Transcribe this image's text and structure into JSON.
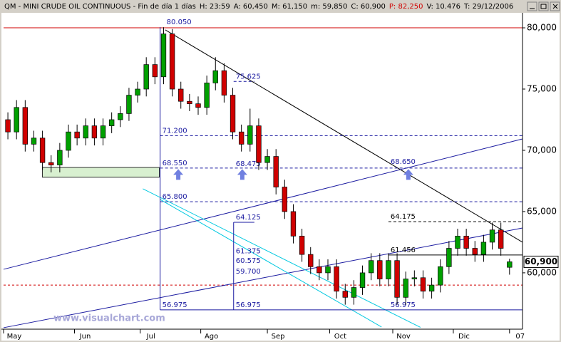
{
  "chart_data": {
    "type": "candlestick",
    "header": [
      "QM - MINI CRUDE OIL CONTINUOUS - Fin de día 1 días",
      "H: 23:59",
      "A: 60,450",
      "M: 61,150",
      "m: 59,850",
      "C: 60,900",
      "P: 82,250",
      "V: 10.476",
      "T: 29/12/2006"
    ],
    "header_colors": [
      "#000000",
      "#000000",
      "#000000",
      "#000000",
      "#000000",
      "#000000",
      "#d00000",
      "#000000",
      "#000000"
    ],
    "watermark": "www.visualchart.com",
    "up_color": "#00a000",
    "down_color": "#d00000",
    "open": [
      72500,
      71500,
      73500,
      70500,
      71000,
      69000,
      68800,
      70000,
      71500,
      71000,
      72000,
      71000,
      72000,
      72500,
      73000,
      74500,
      75000,
      77000,
      76000,
      79500,
      75000,
      74000,
      73800,
      73500,
      75500,
      76500,
      74500,
      71500,
      70500,
      72000,
      69000,
      69500,
      67000,
      65000,
      63000,
      61500,
      60500,
      60000,
      60500,
      58500,
      58000,
      58800,
      60000,
      61000,
      59500,
      61000,
      58000,
      59500,
      59600,
      58500,
      59000,
      60500,
      62000,
      63000,
      62000,
      61500,
      62500,
      63500,
      60450
    ],
    "high": [
      73100,
      74100,
      74100,
      71600,
      71600,
      69600,
      70600,
      72100,
      72100,
      72600,
      72600,
      72600,
      73100,
      73600,
      75100,
      75600,
      77600,
      77600,
      80050,
      79900,
      75600,
      74600,
      74400,
      76100,
      77600,
      77100,
      75100,
      72100,
      73400,
      72600,
      70100,
      70100,
      67600,
      65600,
      63600,
      62100,
      61100,
      61100,
      61100,
      59100,
      59400,
      60600,
      61600,
      61600,
      61600,
      61600,
      60100,
      60200,
      60200,
      59600,
      61100,
      62600,
      63600,
      63600,
      62600,
      63100,
      64100,
      64100,
      61150
    ],
    "low": [
      70900,
      70900,
      69900,
      69900,
      68400,
      68200,
      68200,
      69400,
      70400,
      70400,
      70400,
      70400,
      71400,
      71900,
      72400,
      73900,
      74400,
      75400,
      75400,
      74400,
      73400,
      73200,
      72900,
      72900,
      74900,
      73900,
      70900,
      69900,
      69900,
      68400,
      68400,
      66400,
      64400,
      62400,
      60900,
      59900,
      59400,
      59400,
      57900,
      57400,
      57400,
      58200,
      59400,
      58900,
      58900,
      57400,
      57400,
      58900,
      57900,
      57900,
      58400,
      59900,
      61400,
      61400,
      60900,
      60900,
      61900,
      61400,
      59850
    ],
    "close": [
      71500,
      73500,
      70500,
      71000,
      69000,
      68800,
      70000,
      71500,
      71000,
      72000,
      71000,
      72000,
      72500,
      73000,
      74500,
      75000,
      77000,
      76000,
      79500,
      75000,
      74000,
      73800,
      73500,
      75500,
      76500,
      74500,
      71500,
      70500,
      72000,
      69000,
      69500,
      67000,
      65000,
      63000,
      61500,
      60500,
      60000,
      60500,
      58500,
      58000,
      58800,
      60000,
      61000,
      59500,
      61000,
      58000,
      59500,
      59600,
      58500,
      59000,
      60500,
      62000,
      63000,
      62000,
      61500,
      62500,
      63500,
      62000,
      60900
    ],
    "xlim": [
      0,
      60
    ],
    "xticks": [
      {
        "value": 0,
        "label": "May"
      },
      {
        "value": 8.2,
        "label": "Jun"
      },
      {
        "value": 15.8,
        "label": "Jul"
      },
      {
        "value": 22.8,
        "label": "Ago"
      },
      {
        "value": 30.5,
        "label": "Sep"
      },
      {
        "value": 37.7,
        "label": "Oct"
      },
      {
        "value": 45,
        "label": "Nov"
      },
      {
        "value": 52,
        "label": "Dic"
      },
      {
        "value": 58.5,
        "label": "07"
      }
    ],
    "ylim": [
      55400,
      81340
    ],
    "yticks": [
      {
        "value": 60000,
        "label": "60,000"
      },
      {
        "value": 65000,
        "label": "65,000"
      },
      {
        "value": 70000,
        "label": "70,000"
      },
      {
        "value": 75000,
        "label": "75,000"
      },
      {
        "value": 80000,
        "label": "80,000"
      }
    ],
    "last_price": {
      "value": 60900,
      "label": "60,900"
    },
    "reference_lines": [
      {
        "value": 80000,
        "color": "#d00000",
        "dash": false
      },
      {
        "value": 59000,
        "color": "#d00000",
        "dash": true
      }
    ],
    "levels": [
      {
        "value": 80050,
        "label": "80.050",
        "from": 18.6,
        "to": 18.6,
        "color": "#1a1aa0",
        "dash": true
      },
      {
        "value": 75625,
        "label": "75.625",
        "from": 26.6,
        "to": 29,
        "color": "#1a1aa0",
        "dash": true
      },
      {
        "value": 71200,
        "label": "71.200",
        "from": 18.1,
        "to": 60,
        "color": "#1a1aa0",
        "dash": true
      },
      {
        "value": 68550,
        "label": "68.550",
        "from": 18.1,
        "to": 60,
        "color": "#1a1aa0",
        "dash": true
      },
      {
        "value": 68475,
        "label": "68.475",
        "from": 26.6,
        "to": 26.6,
        "color": "#1a1aa0",
        "dash": true
      },
      {
        "value": 68650,
        "label": "68.650",
        "from": 44.5,
        "to": 44.5,
        "color": "#1a1aa0",
        "dash": true
      },
      {
        "value": 65800,
        "label": "65.800",
        "from": 18.1,
        "to": 60,
        "color": "#1a1aa0",
        "dash": true
      },
      {
        "value": 64175,
        "label": "64.175",
        "from": 44.5,
        "to": 60,
        "color": "#000000",
        "dash": true
      },
      {
        "value": 64125,
        "label": "64.125",
        "from": 26.6,
        "to": 29,
        "color": "#1a1aa0",
        "dash": false
      },
      {
        "value": 61456,
        "label": "61.456",
        "from": 44.5,
        "to": 60,
        "color": "#000000",
        "dash": false
      },
      {
        "value": 61375,
        "label": "61.375",
        "from": 26.6,
        "to": 26.6,
        "color": "#1a1aa0",
        "dash": true
      },
      {
        "value": 60575,
        "label": "60.575",
        "from": 26.6,
        "to": 26.6,
        "color": "#1a1aa0",
        "dash": true
      },
      {
        "value": 59700,
        "label": "59.700",
        "from": 26.6,
        "to": 26.6,
        "color": "#1a1aa0",
        "dash": true
      },
      {
        "value": 56975,
        "label": "56.975",
        "from": 18.1,
        "to": 60,
        "color": "#1a1aa0",
        "dash": false
      },
      {
        "value": 56975,
        "label": "56.975",
        "from": 26.6,
        "to": 26.6,
        "color": "#1a1aa0",
        "dash": false
      },
      {
        "value": 56975,
        "label": "56.975",
        "from": 44.5,
        "to": 44.5,
        "color": "#1a1aa0",
        "dash": false
      }
    ],
    "trendlines": [
      {
        "points": [
          [
            18.7,
            79830
          ],
          [
            60,
            62500
          ]
        ],
        "color": "#000000"
      },
      {
        "points": [
          [
            0,
            60290
          ],
          [
            60,
            70930
          ]
        ],
        "color": "#1a1aa0"
      },
      {
        "points": [
          [
            0,
            55520
          ],
          [
            60,
            63660
          ]
        ],
        "color": "#1a1aa0"
      },
      {
        "points": [
          [
            16.1,
            66860
          ],
          [
            48.2,
            55550
          ]
        ],
        "color": "#00c8e0"
      },
      {
        "points": [
          [
            18.1,
            65990
          ],
          [
            43.7,
            55580
          ]
        ],
        "color": "#00c8e0"
      },
      {
        "points": [
          [
            18.1,
            80050
          ],
          [
            18.1,
            56975
          ]
        ],
        "color": "#1a1aa0"
      },
      {
        "points": [
          [
            26.6,
            64125
          ],
          [
            26.6,
            56975
          ]
        ],
        "color": "#1a1aa0"
      }
    ],
    "zones": [
      {
        "from": 4.5,
        "to": 18.0,
        "low": 67800,
        "high": 68600,
        "color": "#d8f0d0"
      }
    ],
    "arrows": [
      [
        20.2,
        68000
      ],
      [
        27.6,
        68000
      ],
      [
        46.8,
        68000
      ]
    ],
    "arrow_color": "#7080e0"
  }
}
